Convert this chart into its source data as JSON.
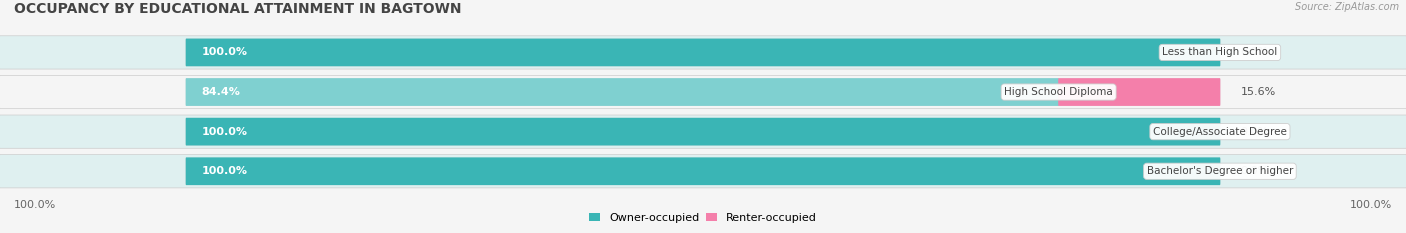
{
  "title": "OCCUPANCY BY EDUCATIONAL ATTAINMENT IN BAGTOWN",
  "source": "Source: ZipAtlas.com",
  "categories": [
    "Less than High School",
    "High School Diploma",
    "College/Associate Degree",
    "Bachelor's Degree or higher"
  ],
  "owner_pct": [
    100.0,
    84.4,
    100.0,
    100.0
  ],
  "renter_pct": [
    0.0,
    15.6,
    0.0,
    0.0
  ],
  "owner_color_full": "#3ab5b5",
  "owner_color_partial": "#7fd0d0",
  "renter_color_full": "#f47faa",
  "renter_color_partial": "#f9b8ce",
  "bar_bg_color": "#e0e0e0",
  "row_bg_even": "#dff0f0",
  "row_bg_odd": "#f5f5f5",
  "title_fontsize": 10,
  "label_fontsize": 8,
  "source_fontsize": 7,
  "tick_fontsize": 8,
  "fig_bg_color": "#f5f5f5",
  "bar_height": 0.62,
  "legend_owner": "Owner-occupied",
  "legend_renter": "Renter-occupied",
  "bottom_left_label": "100.0%",
  "bottom_right_label": "100.0%"
}
